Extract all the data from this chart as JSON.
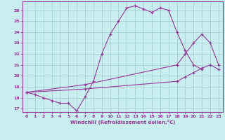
{
  "bg_color": "#c8eef0",
  "line_color": "#993399",
  "grid_color": "#9ecece",
  "xlabel": "Windchill (Refroidissement éolien,°C)",
  "xlim": [
    -0.5,
    23.5
  ],
  "ylim": [
    16.7,
    26.8
  ],
  "yticks": [
    17,
    18,
    19,
    20,
    21,
    22,
    23,
    24,
    25,
    26
  ],
  "xticks": [
    0,
    1,
    2,
    3,
    4,
    5,
    6,
    7,
    8,
    9,
    10,
    11,
    12,
    13,
    14,
    15,
    16,
    17,
    18,
    19,
    20,
    21,
    22,
    23
  ],
  "line1_x": [
    0,
    1,
    2,
    3,
    4,
    5,
    6,
    7,
    8,
    9,
    10,
    11,
    12,
    13,
    14,
    15,
    16,
    17,
    18,
    19,
    20,
    21
  ],
  "line1_y": [
    18.5,
    18.3,
    18.0,
    17.75,
    17.5,
    17.5,
    16.8,
    18.1,
    19.5,
    22.0,
    23.8,
    25.0,
    26.2,
    26.4,
    26.1,
    25.8,
    26.2,
    26.0,
    24.0,
    22.3,
    21.0,
    20.6
  ],
  "line2_x": [
    0,
    7,
    18,
    19,
    20,
    21,
    22,
    23
  ],
  "line2_y": [
    18.5,
    19.2,
    21.0,
    22.0,
    23.0,
    23.8,
    23.0,
    21.0
  ],
  "line3_x": [
    0,
    7,
    18,
    19,
    20,
    21,
    22,
    23
  ],
  "line3_y": [
    18.5,
    18.8,
    19.5,
    19.9,
    20.3,
    20.7,
    21.0,
    20.6
  ]
}
